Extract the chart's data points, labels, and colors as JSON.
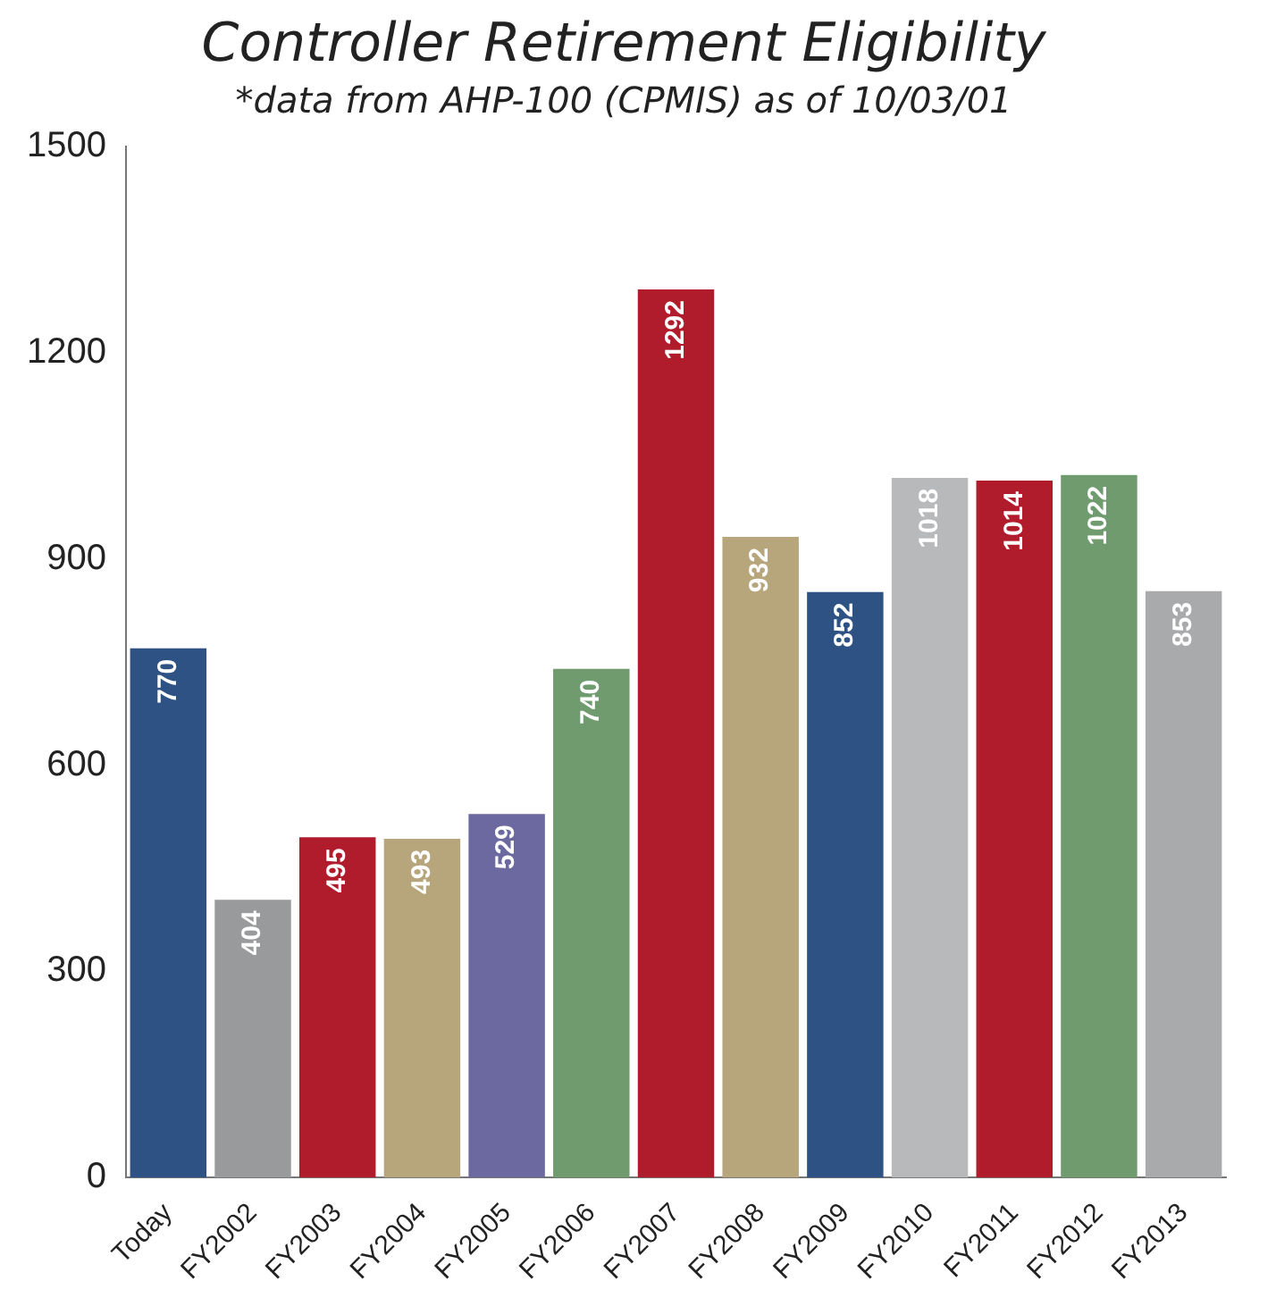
{
  "chart_data": {
    "type": "bar",
    "title": "Controller Retirement Eligibility",
    "subtitle": "*data from AHP-100 (CPMIS) as of 10/03/01",
    "categories": [
      "Today",
      "FY2002",
      "FY2003",
      "FY2004",
      "FY2005",
      "FY2006",
      "FY2007",
      "FY2008",
      "FY2009",
      "FY2010",
      "FY2011",
      "FY2012",
      "FY2013"
    ],
    "values": [
      770,
      404,
      495,
      493,
      529,
      740,
      1292,
      932,
      852,
      1018,
      1014,
      1022,
      853
    ],
    "colors": [
      "#2d5283",
      "#999a9c",
      "#b11c2c",
      "#b7a57b",
      "#6b699f",
      "#6f9b6f",
      "#b11c2c",
      "#b7a57b",
      "#2d5283",
      "#b8b9bb",
      "#b11c2c",
      "#6f9b6f",
      "#a9aaac"
    ],
    "ylim": [
      0,
      1500
    ],
    "yticks": [
      0,
      300,
      600,
      900,
      1200,
      1500
    ],
    "grid": false,
    "legend": false,
    "data_labels": true
  }
}
